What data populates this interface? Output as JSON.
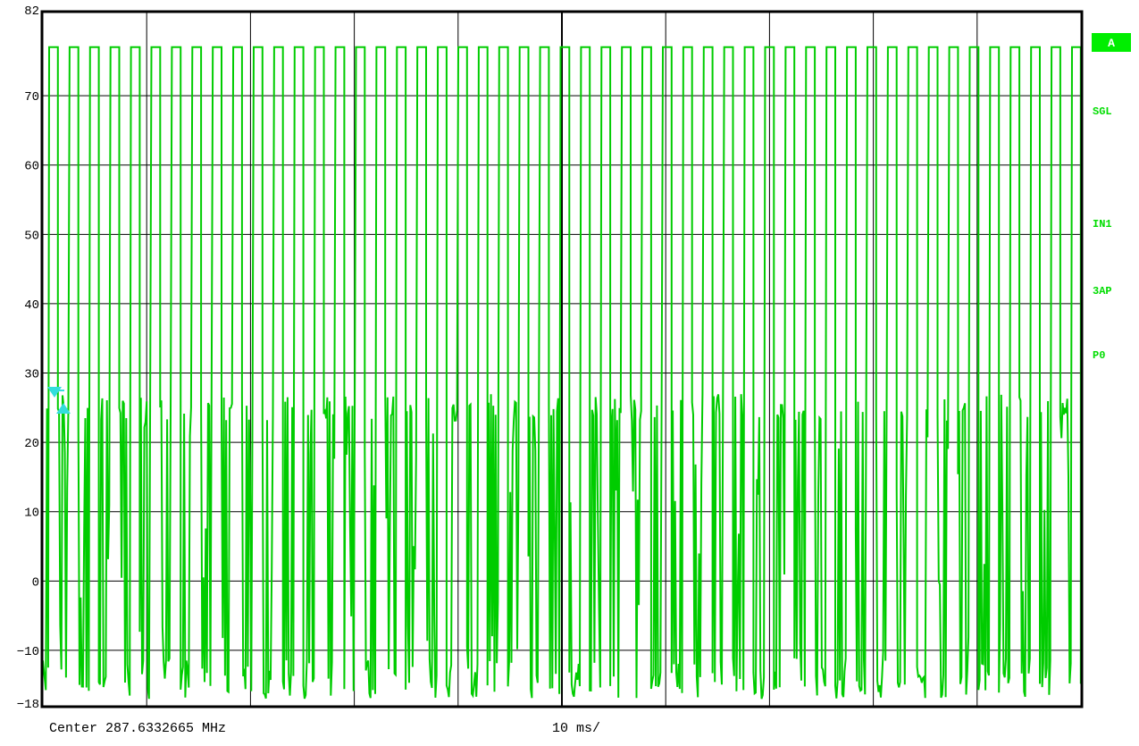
{
  "chart_data": {
    "type": "line",
    "title": "",
    "xlabel": "",
    "ylabel": "",
    "ylim": [
      -18,
      82
    ],
    "ytick_labels": [
      "82",
      "70",
      "60",
      "50",
      "40",
      "30",
      "20",
      "10",
      "0",
      "-10",
      "-18"
    ],
    "grid": true,
    "x_divisions": 10,
    "sweep_ms": 100,
    "series": [
      {
        "color": "#00cc00",
        "pulse_count": 51,
        "pulse_level": 77,
        "pulse_width_ms": 0.6,
        "noise_floor_min": -17,
        "noise_floor_max": 27
      }
    ],
    "footer": {
      "center_label": "Center 287.6332665 MHz",
      "span_label": "10 ms/"
    }
  },
  "side_panel": {
    "badge": "A",
    "labels": [
      "SGL",
      "IN1",
      "3AP",
      "P0"
    ]
  },
  "colors": {
    "trace": "#00cc00",
    "side_text": "#00dd00",
    "badge_bg": "#00ee00",
    "badge_text": "#ffffff",
    "marker": "#33dddd",
    "grid": "#000000",
    "background": "#ffffff"
  }
}
